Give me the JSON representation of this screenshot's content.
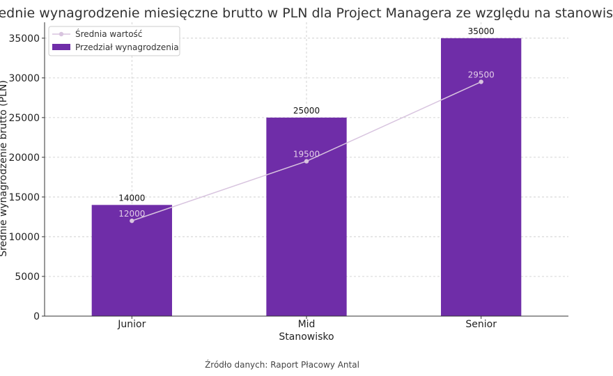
{
  "chart_data": {
    "type": "bar",
    "title": "Średnie wynagrodzenie miesięczne brutto w PLN dla Project Managera ze względu na stanowisko",
    "xlabel": "Stanowisko",
    "ylabel": "Średnie wynagrodzenie brutto (PLN)",
    "categories": [
      "Junior",
      "Mid",
      "Senior"
    ],
    "ylim": [
      0,
      37000
    ],
    "yticks": [
      0,
      5000,
      10000,
      15000,
      20000,
      25000,
      30000,
      35000
    ],
    "grid": true,
    "legend_position": "top-left",
    "series": [
      {
        "name": "Przedział wynagrodzenia",
        "type": "bar",
        "values": [
          14000,
          25000,
          35000
        ],
        "color": "#6f2da8"
      },
      {
        "name": "Średnia wartość",
        "type": "line",
        "values": [
          12000,
          19500,
          29500
        ],
        "color": "#d8c4df"
      }
    ],
    "source": "Źródło danych: Raport Płacowy Antal"
  }
}
